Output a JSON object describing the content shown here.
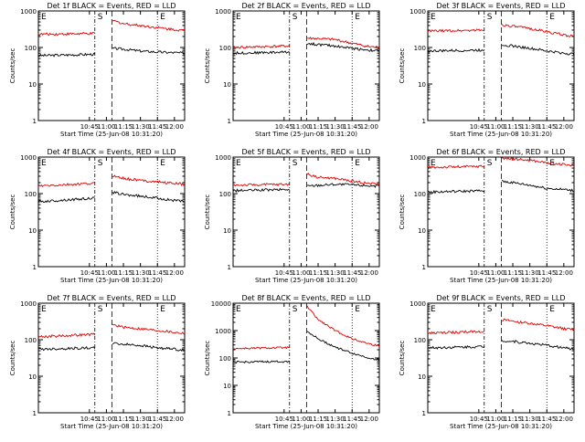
{
  "figure": {
    "colors": {
      "events": "#000000",
      "lld": "#e00000",
      "axes": "#000000",
      "background": "#ffffff"
    },
    "x_axis": {
      "ticks": [
        "10:45",
        "11:00",
        "11:15",
        "11:30",
        "11:45",
        "12:00"
      ],
      "xlabel": "Start Time (25-Jun-08 10:31:20)"
    },
    "y_axis": {
      "ylabel": "Counts/sec",
      "scale": "log"
    },
    "panel_ylim_minutes_x": [
      39,
      97
    ]
  },
  "chart_data": [
    {
      "type": "line",
      "title": "Det 1f BLACK = Events, RED = LLD",
      "xlabel": "Start Time (25-Jun-08 10:31:20)",
      "ylabel": "Counts/sec",
      "ylim": [
        1,
        1000
      ],
      "yticks": [
        "1",
        "10",
        "100",
        "1000"
      ],
      "yscale": "log",
      "xticks": [
        "10:45",
        "11:00",
        "11:15",
        "11:30",
        "11:45",
        "12:00"
      ],
      "annotations": [
        {
          "text": "E"
        },
        {
          "text": "S"
        },
        {
          "text": "E"
        }
      ],
      "gaps": [
        [
          10.83,
          11.08
        ]
      ],
      "series": [
        {
          "color": "black",
          "x": [
            10.0,
            10.83,
            11.08,
            11.25,
            11.5,
            11.75,
            12.0,
            12.15
          ],
          "values": [
            60,
            65,
            95,
            90,
            80,
            75,
            72,
            70
          ]
        },
        {
          "color": "red",
          "x": [
            10.0,
            10.83,
            11.08,
            11.25,
            11.5,
            11.75,
            12.0,
            12.15
          ],
          "values": [
            230,
            240,
            550,
            450,
            400,
            350,
            310,
            290
          ]
        }
      ]
    },
    {
      "type": "line",
      "title": "Det 2f BLACK = Events, RED = LLD",
      "xlabel": "Start Time (25-Jun-08 10:31:20)",
      "ylabel": "Counts/sec",
      "ylim": [
        1,
        1000
      ],
      "yticks": [
        "1",
        "10",
        "100",
        "1000"
      ],
      "yscale": "log",
      "xticks": [
        "10:45",
        "11:00",
        "11:15",
        "11:30",
        "11:45",
        "12:00"
      ],
      "annotations": [
        {
          "text": "E"
        },
        {
          "text": "S"
        },
        {
          "text": "E"
        }
      ],
      "gaps": [
        [
          10.83,
          11.08
        ]
      ],
      "series": [
        {
          "color": "black",
          "x": [
            10.0,
            10.83,
            11.08,
            11.25,
            11.5,
            11.75,
            12.0,
            12.15
          ],
          "values": [
            70,
            75,
            130,
            120,
            110,
            95,
            85,
            80
          ]
        },
        {
          "color": "red",
          "x": [
            10.0,
            10.83,
            11.08,
            11.25,
            11.5,
            11.75,
            12.0,
            12.15
          ],
          "values": [
            100,
            110,
            180,
            175,
            165,
            130,
            105,
            100
          ]
        }
      ]
    },
    {
      "type": "line",
      "title": "Det 3f BLACK = Events, RED = LLD",
      "xlabel": "Start Time (25-Jun-08 10:31:20)",
      "ylabel": "Counts/sec",
      "ylim": [
        1,
        1000
      ],
      "yticks": [
        "1",
        "10",
        "100",
        "1000"
      ],
      "yscale": "log",
      "xticks": [
        "10:45",
        "11:00",
        "11:15",
        "11:30",
        "11:45",
        "12:00"
      ],
      "annotations": [
        {
          "text": "E"
        },
        {
          "text": "S"
        },
        {
          "text": "E"
        }
      ],
      "gaps": [
        [
          10.83,
          11.08
        ]
      ],
      "series": [
        {
          "color": "black",
          "x": [
            10.0,
            10.83,
            11.08,
            11.25,
            11.5,
            11.75,
            12.0,
            12.15
          ],
          "values": [
            80,
            85,
            120,
            110,
            95,
            80,
            70,
            65
          ]
        },
        {
          "color": "red",
          "x": [
            10.0,
            10.83,
            11.08,
            11.25,
            11.5,
            11.75,
            12.0,
            12.15
          ],
          "values": [
            280,
            300,
            420,
            380,
            330,
            270,
            220,
            200
          ]
        }
      ]
    },
    {
      "type": "line",
      "title": "Det 4f BLACK = Events, RED = LLD",
      "xlabel": "Start Time (25-Jun-08 10:31:20)",
      "ylabel": "Counts/sec",
      "ylim": [
        1,
        1000
      ],
      "yticks": [
        "1",
        "10",
        "100",
        "1000"
      ],
      "yscale": "log",
      "xticks": [
        "10:45",
        "11:00",
        "11:15",
        "11:30",
        "11:45",
        "12:00"
      ],
      "annotations": [
        {
          "text": "E"
        },
        {
          "text": "S"
        },
        {
          "text": "E"
        }
      ],
      "gaps": [
        [
          10.83,
          11.08
        ]
      ],
      "series": [
        {
          "color": "black",
          "x": [
            10.0,
            10.83,
            11.08,
            11.25,
            11.5,
            11.75,
            12.0,
            12.15
          ],
          "values": [
            60,
            75,
            110,
            95,
            85,
            75,
            65,
            60
          ]
        },
        {
          "color": "red",
          "x": [
            10.0,
            10.83,
            11.08,
            11.25,
            11.5,
            11.75,
            12.0,
            12.15
          ],
          "values": [
            160,
            190,
            320,
            260,
            230,
            210,
            190,
            180
          ]
        }
      ]
    },
    {
      "type": "line",
      "title": "Det 5f BLACK = Events, RED = LLD",
      "xlabel": "Start Time (25-Jun-08 10:31:20)",
      "ylabel": "Counts/sec",
      "ylim": [
        1,
        1000
      ],
      "yticks": [
        "1",
        "10",
        "100",
        "1000"
      ],
      "yscale": "log",
      "xticks": [
        "10:45",
        "11:00",
        "11:15",
        "11:30",
        "11:45",
        "12:00"
      ],
      "annotations": [
        {
          "text": "E"
        },
        {
          "text": "S"
        },
        {
          "text": "E"
        }
      ],
      "gaps": [
        [
          10.83,
          11.08
        ]
      ],
      "series": [
        {
          "color": "black",
          "x": [
            10.0,
            10.83,
            11.08,
            11.25,
            11.5,
            11.75,
            12.0,
            12.15
          ],
          "values": [
            120,
            130,
            160,
            170,
            180,
            175,
            165,
            160
          ]
        },
        {
          "color": "red",
          "x": [
            10.0,
            10.83,
            11.08,
            11.25,
            11.5,
            11.75,
            12.0,
            12.15
          ],
          "values": [
            170,
            180,
            350,
            280,
            260,
            220,
            190,
            180
          ]
        }
      ]
    },
    {
      "type": "line",
      "title": "Det 6f BLACK = Events, RED = LLD",
      "xlabel": "Start Time (25-Jun-08 10:31:20)",
      "ylabel": "Counts/sec",
      "ylim": [
        1,
        1000
      ],
      "yticks": [
        "1",
        "10",
        "100",
        "1000"
      ],
      "yscale": "log",
      "xticks": [
        "10:45",
        "11:00",
        "11:15",
        "11:30",
        "11:45",
        "12:00"
      ],
      "annotations": [
        {
          "text": "E"
        },
        {
          "text": "S"
        },
        {
          "text": "E"
        }
      ],
      "gaps": [
        [
          10.83,
          11.08
        ]
      ],
      "series": [
        {
          "color": "black",
          "x": [
            10.0,
            10.83,
            11.08,
            11.25,
            11.5,
            11.75,
            12.0,
            12.15
          ],
          "values": [
            110,
            120,
            220,
            200,
            170,
            140,
            130,
            120
          ]
        },
        {
          "color": "red",
          "x": [
            10.0,
            10.83,
            11.08,
            11.25,
            11.5,
            11.75,
            12.0,
            12.15
          ],
          "values": [
            520,
            560,
            950,
            880,
            820,
            700,
            620,
            590
          ]
        }
      ]
    },
    {
      "type": "line",
      "title": "Det 7f BLACK = Events, RED = LLD",
      "xlabel": "Start Time (25-Jun-08 10:31:20)",
      "ylabel": "Counts/sec",
      "ylim": [
        1,
        1000
      ],
      "yticks": [
        "1",
        "10",
        "100",
        "1000"
      ],
      "yscale": "log",
      "xticks": [
        "10:45",
        "11:00",
        "11:15",
        "11:30",
        "11:45",
        "12:00"
      ],
      "annotations": [
        {
          "text": "E"
        },
        {
          "text": "S"
        },
        {
          "text": "E"
        }
      ],
      "gaps": [
        [
          10.83,
          11.08
        ]
      ],
      "series": [
        {
          "color": "black",
          "x": [
            10.0,
            10.83,
            11.08,
            11.25,
            11.5,
            11.75,
            12.0,
            12.15
          ],
          "values": [
            55,
            60,
            80,
            75,
            70,
            60,
            55,
            52
          ]
        },
        {
          "color": "red",
          "x": [
            10.0,
            10.83,
            11.08,
            11.25,
            11.5,
            11.75,
            12.0,
            12.15
          ],
          "values": [
            120,
            140,
            260,
            220,
            200,
            180,
            160,
            150
          ]
        }
      ]
    },
    {
      "type": "line",
      "title": "Det 8f BLACK = Events, RED = LLD",
      "xlabel": "Start Time (25-Jun-08 10:31:20)",
      "ylabel": "Counts/sec",
      "ylim": [
        1,
        10000
      ],
      "yticks": [
        "1",
        "10",
        "100",
        "1000",
        "10000"
      ],
      "yscale": "log",
      "xticks": [
        "10:45",
        "11:00",
        "11:15",
        "11:30",
        "11:45",
        "12:00"
      ],
      "annotations": [
        {
          "text": "E"
        },
        {
          "text": "S"
        },
        {
          "text": "E"
        }
      ],
      "gaps": [
        [
          10.83,
          11.08
        ]
      ],
      "series": [
        {
          "color": "black",
          "x": [
            10.0,
            10.83,
            11.08,
            11.25,
            11.5,
            11.75,
            12.0,
            12.15
          ],
          "values": [
            70,
            75,
            1000,
            500,
            250,
            150,
            100,
            85
          ]
        },
        {
          "color": "red",
          "x": [
            10.0,
            10.83,
            11.08,
            11.25,
            11.5,
            11.75,
            12.0,
            12.15
          ],
          "values": [
            220,
            240,
            8000,
            2500,
            1000,
            500,
            330,
            270
          ]
        }
      ]
    },
    {
      "type": "line",
      "title": "Det 9f BLACK = Events, RED = LLD",
      "xlabel": "Start Time (25-Jun-08 10:31:20)",
      "ylabel": "Counts/sec",
      "ylim": [
        1,
        1000
      ],
      "yticks": [
        "1",
        "10",
        "100",
        "1000"
      ],
      "yscale": "log",
      "xticks": [
        "10:45",
        "11:00",
        "11:15",
        "11:30",
        "11:45",
        "12:00"
      ],
      "annotations": [
        {
          "text": "E"
        },
        {
          "text": "S"
        },
        {
          "text": "E"
        }
      ],
      "gaps": [
        [
          10.83,
          11.08
        ]
      ],
      "series": [
        {
          "color": "black",
          "x": [
            10.0,
            10.83,
            11.08,
            11.25,
            11.5,
            11.75,
            12.0,
            12.15
          ],
          "values": [
            60,
            65,
            95,
            90,
            80,
            70,
            60,
            55
          ]
        },
        {
          "color": "red",
          "x": [
            10.0,
            10.83,
            11.08,
            11.25,
            11.5,
            11.75,
            12.0,
            12.15
          ],
          "values": [
            150,
            170,
            350,
            320,
            280,
            240,
            200,
            190
          ]
        }
      ]
    }
  ]
}
